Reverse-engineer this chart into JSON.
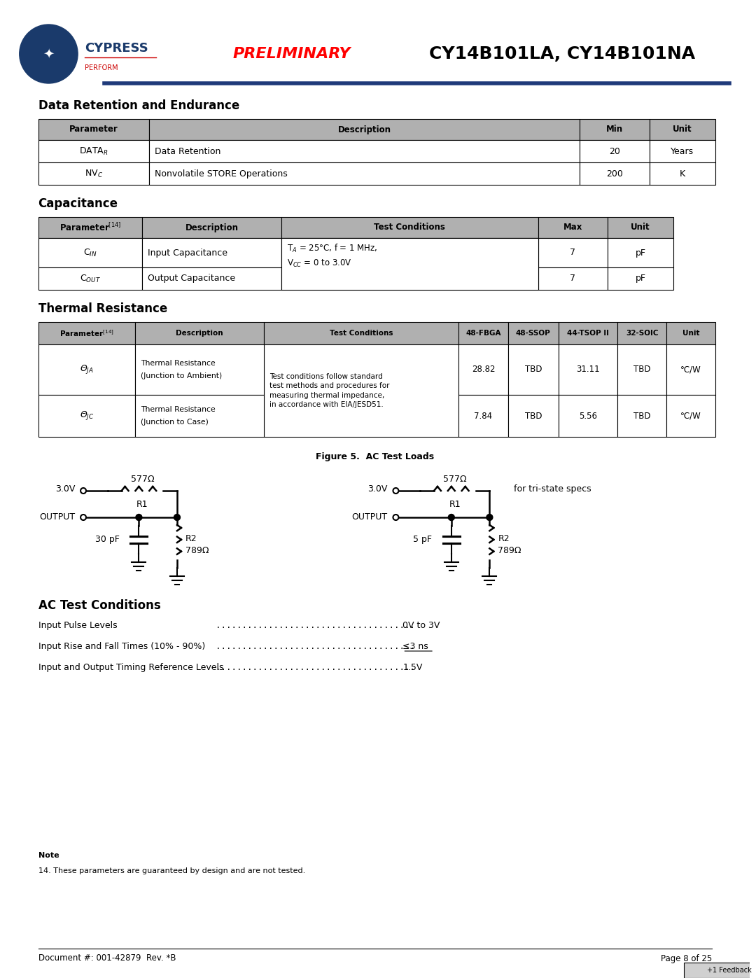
{
  "page_title": "CY14B101LA, CY14B101NA",
  "preliminary_text": "PRELIMINARY",
  "doc_number": "Document #: 001-42879  Rev. *B",
  "page_number": "Page 8 of 25",
  "section1_title": "Data Retention and Endurance",
  "table1_headers": [
    "Parameter",
    "Description",
    "Min",
    "Unit"
  ],
  "table1_rows": [
    [
      "DATA_R",
      "Data Retention",
      "20",
      "Years"
    ],
    [
      "NV_C",
      "Nonvolatile STORE Operations",
      "200",
      "K"
    ]
  ],
  "section2_title": "Capacitance",
  "table2_headers": [
    "Parameter[14]",
    "Description",
    "Test Conditions",
    "Max",
    "Unit"
  ],
  "table2_rows": [
    [
      "C_IN",
      "Input Capacitance",
      "T_A = 25°C, f = 1 MHz,\nV_CC = 0 to 3.0V",
      "7",
      "pF"
    ],
    [
      "C_OUT",
      "Output Capacitance",
      "",
      "7",
      "pF"
    ]
  ],
  "section3_title": "Thermal Resistance",
  "table3_headers": [
    "Parameter[14]",
    "Description",
    "Test Conditions",
    "48-FBGA",
    "48-SSOP",
    "44-TSOP II",
    "32-SOIC",
    "Unit"
  ],
  "table3_rows": [
    [
      "Θ_JA",
      "Thermal Resistance\n(Junction to Ambient)",
      "Test conditions follow standard\ntest methods and procedures for\nmeasuring thermal impedance,\nin accordance with EIA/JESD51.",
      "28.82",
      "TBD",
      "31.11",
      "TBD",
      "°C/W"
    ],
    [
      "Θ_JC",
      "Thermal Resistance\n(Junction to Case)",
      "",
      "7.84",
      "TBD",
      "5.56",
      "TBD",
      "°C/W"
    ]
  ],
  "figure_caption": "Figure 5.  AC Test Loads",
  "section4_title": "AC Test Conditions",
  "ac_conditions": [
    [
      "Input Pulse Levels",
      "0V to 3V"
    ],
    [
      "Input Rise and Fall Times (10% - 90%)",
      "≤3 ns"
    ],
    [
      "Input and Output Timing Reference Levels",
      "1.5V"
    ]
  ],
  "note_text": "Note\n14. These parameters are guaranteed by design and are not tested.",
  "header_bg": "#c0c0c0",
  "table_border": "#000000",
  "text_color": "#000000",
  "preliminary_color": "#ff0000",
  "title_color": "#000000",
  "blue_line_color": "#1f3a7a",
  "feedback_bg": "#c0c0c0"
}
